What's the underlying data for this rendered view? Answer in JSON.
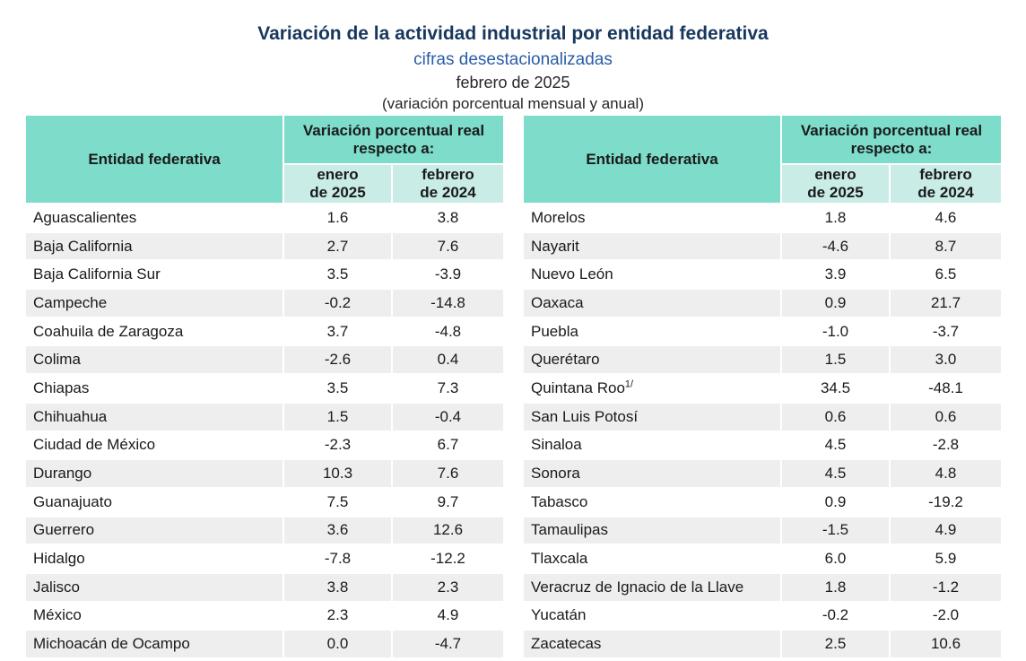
{
  "title": {
    "main": "Variación de la actividad industrial por entidad federativa",
    "subtitle": "cifras desestacionalizadas",
    "period": "febrero de 2025",
    "note": "(variación porcentual mensual y anual)"
  },
  "header": {
    "entity": "Entidad federativa",
    "group": "Variación porcentual real respecto a:",
    "col_monthly": "enero\nde 2025",
    "col_annual": "febrero\nde 2024"
  },
  "colors": {
    "title_navy": "#17375e",
    "subtitle_blue": "#2a5ca8",
    "header_teal": "#7ddcca",
    "subheader_teal": "#c9ece6",
    "row_stripe": "#eeeeee"
  },
  "tables": {
    "left": {
      "rows": [
        {
          "name": "Aguascalientes",
          "monthly": "1.6",
          "annual": "3.8"
        },
        {
          "name": "Baja California",
          "monthly": "2.7",
          "annual": "7.6"
        },
        {
          "name": "Baja California Sur",
          "monthly": "3.5",
          "annual": "-3.9"
        },
        {
          "name": "Campeche",
          "monthly": "-0.2",
          "annual": "-14.8"
        },
        {
          "name": "Coahuila de Zaragoza",
          "monthly": "3.7",
          "annual": "-4.8"
        },
        {
          "name": "Colima",
          "monthly": "-2.6",
          "annual": "0.4"
        },
        {
          "name": "Chiapas",
          "monthly": "3.5",
          "annual": "7.3"
        },
        {
          "name": "Chihuahua",
          "monthly": "1.5",
          "annual": "-0.4"
        },
        {
          "name": "Ciudad de México",
          "monthly": "-2.3",
          "annual": "6.7"
        },
        {
          "name": "Durango",
          "monthly": "10.3",
          "annual": "7.6"
        },
        {
          "name": "Guanajuato",
          "monthly": "7.5",
          "annual": "9.7"
        },
        {
          "name": "Guerrero",
          "monthly": "3.6",
          "annual": "12.6"
        },
        {
          "name": "Hidalgo",
          "monthly": "-7.8",
          "annual": "-12.2"
        },
        {
          "name": "Jalisco",
          "monthly": "3.8",
          "annual": "2.3"
        },
        {
          "name": "México",
          "monthly": "2.3",
          "annual": "4.9"
        },
        {
          "name": "Michoacán de Ocampo",
          "monthly": "0.0",
          "annual": "-4.7"
        }
      ]
    },
    "right": {
      "rows": [
        {
          "name": "Morelos",
          "monthly": "1.8",
          "annual": "4.6"
        },
        {
          "name": "Nayarit",
          "monthly": "-4.6",
          "annual": "8.7"
        },
        {
          "name": "Nuevo León",
          "monthly": "3.9",
          "annual": "6.5"
        },
        {
          "name": "Oaxaca",
          "monthly": "0.9",
          "annual": "21.7"
        },
        {
          "name": "Puebla",
          "monthly": "-1.0",
          "annual": "-3.7"
        },
        {
          "name": "Querétaro",
          "monthly": "1.5",
          "annual": "3.0"
        },
        {
          "name": "Quintana Roo",
          "sup": "1/",
          "monthly": "34.5",
          "annual": "-48.1"
        },
        {
          "name": "San Luis Potosí",
          "monthly": "0.6",
          "annual": "0.6"
        },
        {
          "name": "Sinaloa",
          "monthly": "4.5",
          "annual": "-2.8"
        },
        {
          "name": "Sonora",
          "monthly": "4.5",
          "annual": "4.8"
        },
        {
          "name": "Tabasco",
          "monthly": "0.9",
          "annual": "-19.2"
        },
        {
          "name": "Tamaulipas",
          "monthly": "-1.5",
          "annual": "4.9"
        },
        {
          "name": "Tlaxcala",
          "monthly": "6.0",
          "annual": "5.9"
        },
        {
          "name": "Veracruz de Ignacio de la Llave",
          "monthly": "1.8",
          "annual": "-1.2"
        },
        {
          "name": "Yucatán",
          "monthly": "-0.2",
          "annual": "-2.0"
        },
        {
          "name": "Zacatecas",
          "monthly": "2.5",
          "annual": "10.6"
        }
      ]
    }
  }
}
